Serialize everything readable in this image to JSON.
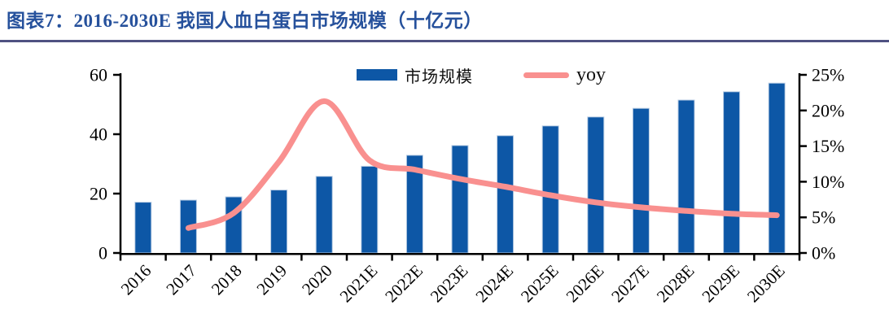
{
  "header": {
    "title": "图表7：2016-2030E 我国人血白蛋白市场规模（十亿元）"
  },
  "colors": {
    "bar": "#0D57A6",
    "bar_edge": "#B9CDE4",
    "line": "#F9908F",
    "title": "#26519C",
    "separator": "#4F5182",
    "axis": "#000000"
  },
  "legend": {
    "items": [
      {
        "label": "市场规模",
        "type": "bar"
      },
      {
        "label": "yoy",
        "type": "line"
      }
    ]
  },
  "chart_data": {
    "type": "bar+line",
    "title": "图表7：2016-2030E 我国人血白蛋白市场规模（十亿元）",
    "categories": [
      "2016",
      "2017",
      "2018",
      "2019",
      "2020",
      "2021E",
      "2022E",
      "2023E",
      "2024E",
      "2025E",
      "2026E",
      "2027E",
      "2028E",
      "2029E",
      "2030E"
    ],
    "series": [
      {
        "name": "市场规模",
        "type": "bar",
        "axis": "left",
        "unit": "十亿元",
        "values": [
          17.1,
          17.8,
          18.9,
          21.2,
          25.8,
          29.2,
          32.9,
          36.2,
          39.5,
          42.8,
          45.8,
          48.7,
          51.5,
          54.3,
          57.2
        ]
      },
      {
        "name": "yoy",
        "type": "line",
        "axis": "right",
        "unit": "%",
        "values": [
          null,
          3.5,
          5.6,
          12.8,
          21.3,
          13.0,
          11.7,
          10.4,
          9.3,
          8.1,
          7.1,
          6.4,
          5.9,
          5.5,
          5.3
        ]
      }
    ],
    "left_axis": {
      "range": [
        0,
        60
      ],
      "ticks": [
        0,
        20,
        40,
        60
      ],
      "tick_labels": [
        "0",
        "20",
        "40",
        "60"
      ]
    },
    "right_axis": {
      "range": [
        0,
        25
      ],
      "ticks": [
        0,
        5,
        10,
        15,
        20,
        25
      ],
      "tick_labels": [
        "0%",
        "5%",
        "10%",
        "15%",
        "20%",
        "25%"
      ]
    },
    "grid": false,
    "legend_position": "top-center",
    "x_label_rotation_deg": -45
  }
}
